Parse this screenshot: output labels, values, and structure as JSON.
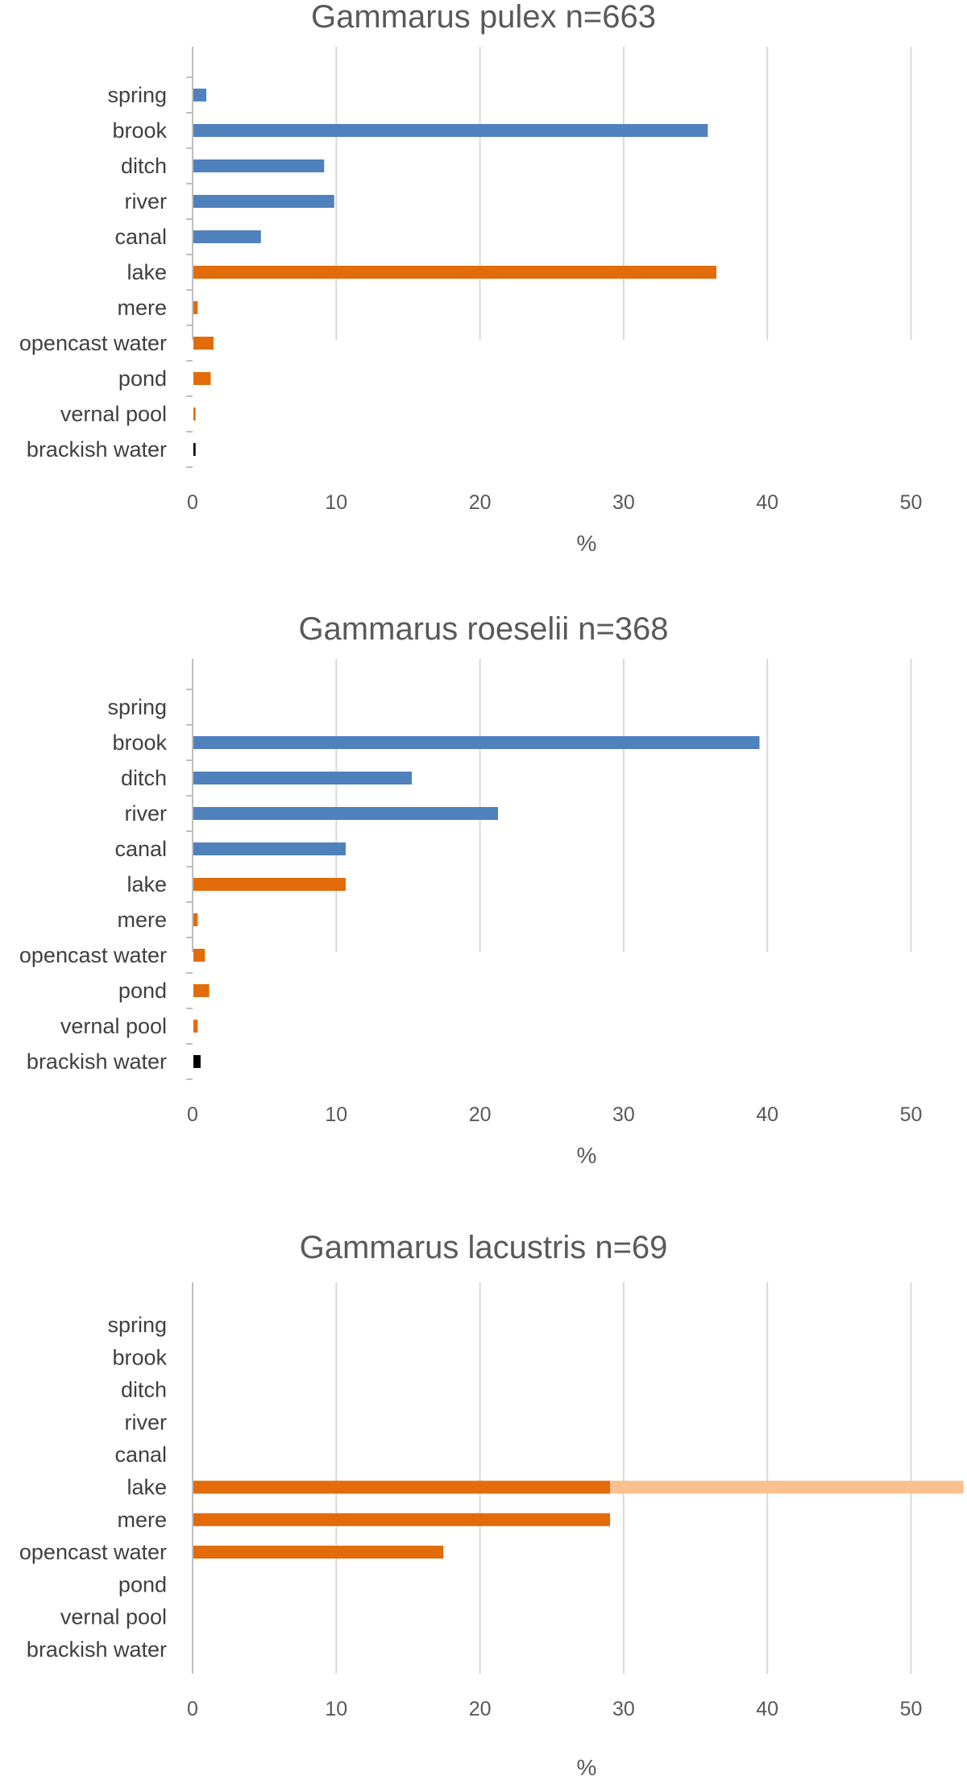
{
  "chart_data": [
    {
      "type": "bar",
      "orientation": "horizontal",
      "title": "Gammarus pulex n=663",
      "xlabel": "%",
      "ylabel": "",
      "xlim": [
        0,
        50
      ],
      "xticks": [
        "0",
        "10",
        "20",
        "30",
        "40",
        "50"
      ],
      "grid": true,
      "categories": [
        "spring",
        "brook",
        "ditch",
        "river",
        "canal",
        "lake",
        "mere",
        "opencast water",
        "pond",
        "vernal pool",
        "brackish water"
      ],
      "values": [
        0.9,
        35.8,
        9.1,
        9.8,
        4.7,
        36.4,
        0.3,
        1.4,
        1.2,
        0.15,
        0.15
      ],
      "colors": [
        "#4f81bd",
        "#4f81bd",
        "#4f81bd",
        "#4f81bd",
        "#4f81bd",
        "#e26b0a",
        "#e26b0a",
        "#e26b0a",
        "#e26b0a",
        "#e26b0a",
        "#000000"
      ]
    },
    {
      "type": "bar",
      "orientation": "horizontal",
      "title": "Gammarus roeselii n=368",
      "xlabel": "%",
      "ylabel": "",
      "xlim": [
        0,
        50
      ],
      "xticks": [
        "0",
        "10",
        "20",
        "30",
        "40",
        "50"
      ],
      "grid": true,
      "categories": [
        "spring",
        "brook",
        "ditch",
        "river",
        "canal",
        "lake",
        "mere",
        "opencast water",
        "pond",
        "vernal pool",
        "brackish water"
      ],
      "values": [
        0,
        39.4,
        15.2,
        21.2,
        10.6,
        10.6,
        0.3,
        0.8,
        1.1,
        0.3,
        0.5
      ],
      "colors": [
        "#4f81bd",
        "#4f81bd",
        "#4f81bd",
        "#4f81bd",
        "#4f81bd",
        "#e26b0a",
        "#e26b0a",
        "#e26b0a",
        "#e26b0a",
        "#e26b0a",
        "#000000"
      ]
    },
    {
      "type": "bar",
      "orientation": "horizontal",
      "title": "Gammarus lacustris n=69",
      "xlabel": "%",
      "ylabel": "",
      "xlim": [
        0,
        50
      ],
      "xticks": [
        "0",
        "10",
        "20",
        "30",
        "40",
        "50"
      ],
      "grid": true,
      "categories": [
        "spring",
        "brook",
        "ditch",
        "river",
        "canal",
        "lake",
        "mere",
        "opencast water",
        "pond",
        "vernal pool",
        "brackish water"
      ],
      "values": [
        0,
        0,
        0,
        0,
        0,
        29.0,
        29.0,
        17.4,
        0,
        0,
        0
      ],
      "extra_values": [
        0,
        0,
        0,
        0,
        0,
        24.6,
        0,
        0,
        0,
        0,
        0
      ],
      "colors": [
        "#4f81bd",
        "#4f81bd",
        "#4f81bd",
        "#4f81bd",
        "#4f81bd",
        "#e26b0a",
        "#e26b0a",
        "#e26b0a",
        "#e26b0a",
        "#e26b0a",
        "#000000"
      ],
      "extra_color": "#fac090"
    }
  ]
}
